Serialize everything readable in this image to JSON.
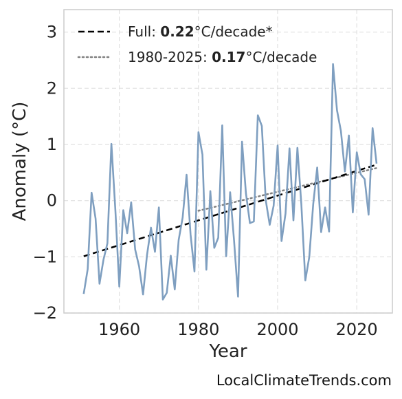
{
  "chart_data": {
    "type": "line",
    "xlabel": "Year",
    "ylabel": "Anomaly (°C)",
    "xlim": [
      1946,
      2029
    ],
    "ylim": [
      -2,
      3.4
    ],
    "xticks": [
      1960,
      1980,
      2000,
      2020
    ],
    "yticks": [
      -2,
      -1,
      0,
      1,
      2,
      3
    ],
    "xtick_labels": [
      "1960",
      "1980",
      "2000",
      "2020"
    ],
    "ytick_labels": [
      "−2",
      "−1",
      "0",
      "1",
      "2",
      "3"
    ],
    "grid": true,
    "legend_position": "top-left",
    "colors": {
      "series": "#7f9fc0",
      "full_trend": "#000000",
      "recent_trend": "#808080",
      "frame": "#cccccc",
      "grid": "#e0e0e0"
    },
    "series": [
      {
        "x": [
          1951,
          1952,
          1953,
          1954,
          1955,
          1956,
          1957,
          1958,
          1959,
          1960,
          1961,
          1962,
          1963,
          1964,
          1965,
          1966,
          1967,
          1968,
          1969,
          1970,
          1971,
          1972,
          1973,
          1974,
          1975,
          1976,
          1977,
          1978,
          1979,
          1980,
          1981,
          1982,
          1983,
          1984,
          1985,
          1986,
          1987,
          1988,
          1989,
          1990,
          1991,
          1992,
          1993,
          1994,
          1995,
          1996,
          1997,
          1998,
          1999,
          2000,
          2001,
          2002,
          2003,
          2004,
          2005,
          2006,
          2007,
          2008,
          2009,
          2010,
          2011,
          2012,
          2013,
          2014,
          2015,
          2016,
          2017,
          2018,
          2019,
          2020,
          2021,
          2022,
          2023,
          2024,
          2025
        ],
        "values": [
          -1.66,
          -1.22,
          0.14,
          -0.32,
          -1.48,
          -1.05,
          -0.76,
          1.01,
          -0.17,
          -1.53,
          -0.17,
          -0.58,
          -0.03,
          -0.87,
          -1.17,
          -1.67,
          -0.97,
          -0.48,
          -0.91,
          -0.12,
          -1.76,
          -1.64,
          -0.98,
          -1.58,
          -0.7,
          -0.3,
          0.46,
          -0.6,
          -1.26,
          1.22,
          0.82,
          -1.23,
          0.17,
          -0.84,
          -0.66,
          1.34,
          -0.99,
          0.15,
          -0.71,
          -1.71,
          1.05,
          0.13,
          -0.4,
          -0.37,
          1.52,
          1.33,
          0.01,
          -0.43,
          -0.09,
          0.98,
          -0.72,
          -0.23,
          0.93,
          -0.35,
          0.94,
          -0.06,
          -1.42,
          -1.0,
          -0.06,
          0.59,
          -0.56,
          -0.12,
          -0.55,
          2.43,
          1.61,
          1.24,
          0.52,
          1.16,
          -0.21,
          0.86,
          0.47,
          0.38,
          -0.25,
          1.29,
          0.66
        ]
      }
    ],
    "trends": [
      {
        "name": "Full",
        "rate": "0.22",
        "x": [
          1951,
          2025
        ],
        "y": [
          -0.99,
          0.64
        ],
        "style": "dashed"
      },
      {
        "name": "1980-2025",
        "rate": "0.17",
        "x": [
          1980,
          2025
        ],
        "y": [
          -0.18,
          0.58
        ],
        "style": "dotted"
      }
    ],
    "legend": [
      {
        "prefix": "Full: ",
        "value": "0.22",
        "suffix": "°C/decade*"
      },
      {
        "prefix": "1980-2025: ",
        "value": "0.17",
        "suffix": "°C/decade"
      }
    ]
  },
  "watermark": "LocalClimateTrends.com"
}
